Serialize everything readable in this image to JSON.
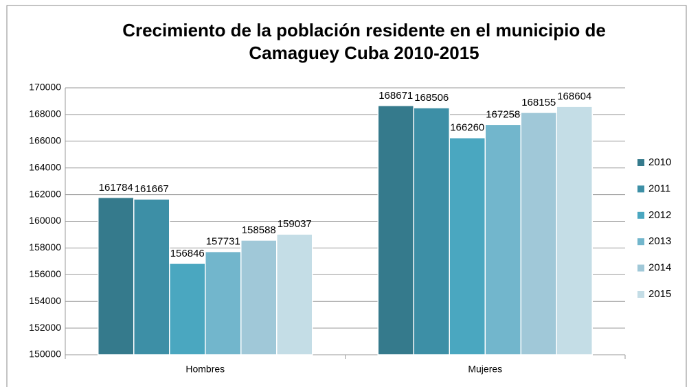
{
  "chart_data": {
    "type": "bar",
    "title": "Crecimiento de la población residente en el municipio de Camaguey Cuba 2010-2015",
    "categories": [
      "Hombres",
      "Mujeres"
    ],
    "series": [
      {
        "name": "2010",
        "color": "#357a8c",
        "values": [
          161784,
          168671
        ]
      },
      {
        "name": "2011",
        "color": "#3d8fa6",
        "values": [
          161667,
          168506
        ]
      },
      {
        "name": "2012",
        "color": "#4aa7c0",
        "values": [
          156846,
          166260
        ]
      },
      {
        "name": "2013",
        "color": "#72b6cc",
        "values": [
          157731,
          167258
        ]
      },
      {
        "name": "2014",
        "color": "#a0c8d8",
        "values": [
          158588,
          168155
        ]
      },
      {
        "name": "2015",
        "color": "#c4dde6",
        "values": [
          159037,
          168604
        ]
      }
    ],
    "ylim": [
      150000,
      170000
    ],
    "yticks": [
      150000,
      152000,
      154000,
      156000,
      158000,
      160000,
      162000,
      164000,
      166000,
      168000,
      170000
    ],
    "grid": true,
    "legend": "right"
  }
}
